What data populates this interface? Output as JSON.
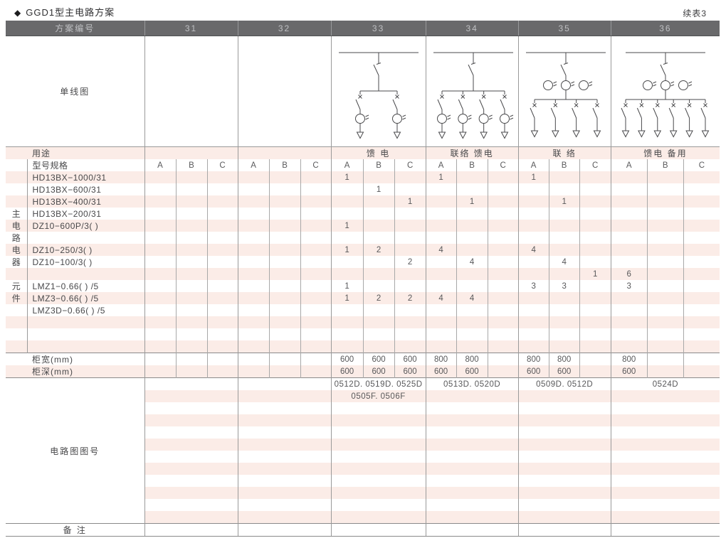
{
  "page": {
    "bullet": "◆",
    "title": "GGD1型主电路方案",
    "continued": "续表3"
  },
  "colors": {
    "stripe_pink": "#fbece7",
    "header_bg": "#69696b",
    "header_text": "#bfc0c3",
    "grid_line": "#9a9a9a"
  },
  "table": {
    "header_label": "方案编号",
    "schemes": [
      "31",
      "32",
      "33",
      "34",
      "35",
      "36"
    ],
    "diagram_label": "单线图",
    "diagrams": [
      null,
      null,
      {
        "name": "feeder-2-branch",
        "branches": 2,
        "main_cts": 0,
        "branch_cts": true
      },
      {
        "name": "tie-feeder-4-branch",
        "branches": 4,
        "main_cts": 0,
        "branch_cts": true
      },
      {
        "name": "tie-4-branch",
        "branches": 4,
        "main_cts": 3,
        "branch_cts": false
      },
      {
        "name": "feeder-spare-6-branch",
        "branches": 6,
        "main_cts": 3,
        "branch_cts": false
      }
    ],
    "usage_label": "用途",
    "usage": [
      "",
      "",
      "馈 电",
      "联络 馈电",
      "联 络",
      "馈电 备用"
    ],
    "spec_label": "型号规格",
    "sub_headers": [
      "A",
      "B",
      "C"
    ],
    "group_label": "主电路电器元件",
    "components": [
      {
        "label": "HD13BX−1000/31",
        "strip": "",
        "values": [
          "",
          "",
          "",
          "",
          "",
          "",
          "1",
          "",
          "",
          "1",
          "",
          "",
          "1",
          "",
          "",
          "",
          "",
          ""
        ]
      },
      {
        "label": "HD13BX−600/31",
        "strip": "",
        "values": [
          "",
          "",
          "",
          "",
          "",
          "",
          "",
          "1",
          "",
          "",
          "",
          "",
          "",
          "",
          "",
          "",
          "",
          ""
        ]
      },
      {
        "label": "HD13BX−400/31",
        "strip": "",
        "values": [
          "",
          "",
          "",
          "",
          "",
          "",
          "",
          "",
          "1",
          "",
          "1",
          "",
          "",
          "1",
          "",
          "",
          "",
          ""
        ]
      },
      {
        "label": "HD13BX−200/31",
        "strip": "主",
        "values": [
          "",
          "",
          "",
          "",
          "",
          "",
          "",
          "",
          "",
          "",
          "",
          "",
          "",
          "",
          "",
          "",
          "",
          ""
        ]
      },
      {
        "label": "DZ10−600P/3( )",
        "strip": "电",
        "values": [
          "",
          "",
          "",
          "",
          "",
          "",
          "1",
          "",
          "",
          "",
          "",
          "",
          "",
          "",
          "",
          "",
          "",
          ""
        ]
      },
      {
        "label": "",
        "strip": "路",
        "values": [
          "",
          "",
          "",
          "",
          "",
          "",
          "",
          "",
          "",
          "",
          "",
          "",
          "",
          "",
          "",
          "",
          "",
          ""
        ]
      },
      {
        "label": "DZ10−250/3( )",
        "strip": "电",
        "values": [
          "",
          "",
          "",
          "",
          "",
          "",
          "1",
          "2",
          "",
          "4",
          "",
          "",
          "4",
          "",
          "",
          "",
          "",
          ""
        ]
      },
      {
        "label": "DZ10−100/3( )",
        "strip": "器",
        "values": [
          "",
          "",
          "",
          "",
          "",
          "",
          "",
          "",
          "2",
          "",
          "4",
          "",
          "",
          "4",
          "",
          "",
          "",
          ""
        ]
      },
      {
        "label": "",
        "strip": "",
        "values": [
          "",
          "",
          "",
          "",
          "",
          "",
          "",
          "",
          "",
          "",
          "",
          "",
          "",
          "",
          "1",
          "6",
          "",
          ""
        ]
      },
      {
        "label": "LMZ1−0.66( ) /5",
        "strip": "元",
        "values": [
          "",
          "",
          "",
          "",
          "",
          "",
          "1",
          "",
          "",
          "",
          "",
          "",
          "3",
          "3",
          "",
          "3",
          "",
          ""
        ]
      },
      {
        "label": "LMZ3−0.66( ) /5",
        "strip": "件",
        "values": [
          "",
          "",
          "",
          "",
          "",
          "",
          "1",
          "2",
          "2",
          "4",
          "4",
          "",
          "",
          "",
          "",
          "",
          "",
          ""
        ]
      },
      {
        "label": "LMZ3D−0.66( ) /5",
        "strip": "",
        "values": [
          "",
          "",
          "",
          "",
          "",
          "",
          "",
          "",
          "",
          "",
          "",
          "",
          "",
          "",
          "",
          "",
          "",
          ""
        ]
      },
      {
        "label": "",
        "strip": "",
        "values": [
          "",
          "",
          "",
          "",
          "",
          "",
          "",
          "",
          "",
          "",
          "",
          "",
          "",
          "",
          "",
          "",
          "",
          ""
        ]
      },
      {
        "label": "",
        "strip": "",
        "values": [
          "",
          "",
          "",
          "",
          "",
          "",
          "",
          "",
          "",
          "",
          "",
          "",
          "",
          "",
          "",
          "",
          "",
          ""
        ]
      },
      {
        "label": "",
        "strip": "",
        "values": [
          "",
          "",
          "",
          "",
          "",
          "",
          "",
          "",
          "",
          "",
          "",
          "",
          "",
          "",
          "",
          "",
          "",
          ""
        ]
      }
    ],
    "cabinet_width": {
      "label": "柜宽(mm)",
      "values": [
        "",
        "",
        "",
        "",
        "",
        "",
        "600",
        "600",
        "600",
        "800",
        "800",
        "",
        "800",
        "800",
        "",
        "800",
        "",
        ""
      ]
    },
    "cabinet_depth": {
      "label": "柜深(mm)",
      "values": [
        "",
        "",
        "",
        "",
        "",
        "",
        "600",
        "600",
        "600",
        "600",
        "600",
        "",
        "600",
        "600",
        "",
        "600",
        "",
        ""
      ]
    },
    "circuit_label": "电路图图号",
    "circuit_rows": [
      [
        "",
        "",
        "0512D. 0519D. 0525D",
        "0513D. 0520D",
        "0509D. 0512D",
        "0524D"
      ],
      [
        "",
        "",
        "0505F. 0506F",
        "",
        "",
        ""
      ],
      [
        "",
        "",
        "",
        "",
        "",
        ""
      ],
      [
        "",
        "",
        "",
        "",
        "",
        ""
      ],
      [
        "",
        "",
        "",
        "",
        "",
        ""
      ],
      [
        "",
        "",
        "",
        "",
        "",
        ""
      ],
      [
        "",
        "",
        "",
        "",
        "",
        ""
      ],
      [
        "",
        "",
        "",
        "",
        "",
        ""
      ],
      [
        "",
        "",
        "",
        "",
        "",
        ""
      ],
      [
        "",
        "",
        "",
        "",
        "",
        ""
      ],
      [
        "",
        "",
        "",
        "",
        "",
        ""
      ],
      [
        "",
        "",
        "",
        "",
        "",
        ""
      ]
    ],
    "remark_label": "备 注",
    "remark": [
      "",
      "",
      "",
      "",
      "",
      ""
    ]
  }
}
